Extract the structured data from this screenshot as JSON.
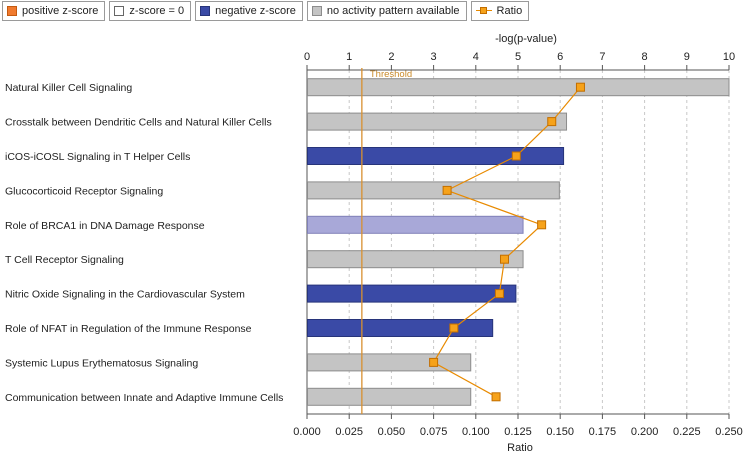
{
  "legend": {
    "items": [
      {
        "label": "positive z-score",
        "swatch": "#f07a2e",
        "border": "#c45a10"
      },
      {
        "label": "z-score = 0",
        "swatch": "#ffffff",
        "border": "#666666"
      },
      {
        "label": "negative z-score",
        "swatch": "#3a4aa6",
        "border": "#27347a"
      },
      {
        "label": "no activity pattern available",
        "swatch": "#c4c4c4",
        "border": "#8c8c8c"
      }
    ],
    "ratio_label": "Ratio"
  },
  "chart_data": {
    "type": "bar",
    "orientation": "horizontal",
    "categories": [
      "Natural Killer Cell Signaling",
      "Crosstalk between Dendritic Cells and Natural Killer Cells",
      "iCOS-iCOSL Signaling in T Helper Cells",
      "Glucocorticoid Receptor Signaling",
      "Role of BRCA1 in DNA Damage Response",
      "T Cell Receptor Signaling",
      "Nitric Oxide Signaling in the Cardiovascular System",
      "Role of NFAT in Regulation of the Immune Response",
      "Systemic Lupus Erythematosus Signaling",
      "Communication between Innate and Adaptive Immune Cells"
    ],
    "series": [
      {
        "name": "-log(p-value)",
        "axis": "top",
        "values": [
          10.0,
          6.15,
          6.08,
          5.98,
          5.12,
          5.12,
          4.95,
          4.4,
          3.88,
          3.88
        ],
        "colors": [
          "#c4c4c4",
          "#c4c4c4",
          "#3a4aa6",
          "#c4c4c4",
          "#a8a8d8",
          "#c4c4c4",
          "#3a4aa6",
          "#3a4aa6",
          "#c4c4c4",
          "#c4c4c4"
        ],
        "outline": [
          "#8c8c8c",
          "#8c8c8c",
          "#27347a",
          "#8c8c8c",
          "#8080b8",
          "#8c8c8c",
          "#27347a",
          "#27347a",
          "#8c8c8c",
          "#8c8c8c"
        ]
      },
      {
        "name": "Ratio",
        "axis": "bottom",
        "type": "line",
        "values": [
          0.162,
          0.145,
          0.124,
          0.083,
          0.139,
          0.117,
          0.114,
          0.087,
          0.075,
          0.112
        ],
        "color": "#e88a00",
        "marker_fill": "#f6a21a"
      }
    ],
    "top_axis": {
      "label": "-log(p-value)",
      "range": [
        0,
        10
      ],
      "ticks": [
        0,
        1,
        2,
        3,
        4,
        5,
        6,
        7,
        8,
        9,
        10
      ]
    },
    "bottom_axis": {
      "label": "Ratio",
      "range": [
        0,
        0.25
      ],
      "ticks": [
        0,
        0.025,
        0.05,
        0.075,
        0.1,
        0.125,
        0.15,
        0.175,
        0.2,
        0.225,
        0.25
      ],
      "tick_labels": [
        "0.000",
        "0.025",
        "0.050",
        "0.075",
        "0.100",
        "0.125",
        "0.150",
        "0.175",
        "0.200",
        "0.225",
        "0.250"
      ]
    },
    "threshold": {
      "value": 1.3,
      "label": "Threshold",
      "color": "#d89030"
    },
    "grid": true
  }
}
